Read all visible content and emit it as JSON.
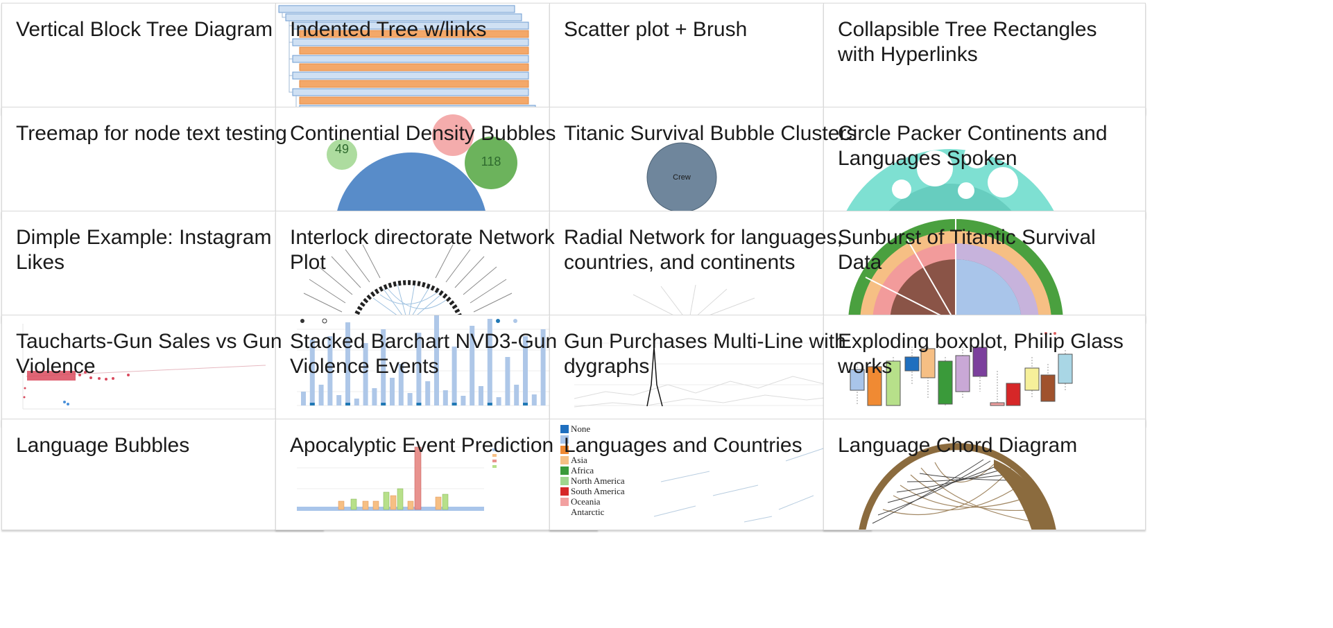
{
  "gallery": {
    "cards": [
      {
        "title": "Vertical Block Tree Diagram"
      },
      {
        "title": "Indented Tree w/links"
      },
      {
        "title": "Scatter plot + Brush"
      },
      {
        "title": "Collapsible Tree Rectangles with Hyperlinks"
      },
      {
        "title": "Treemap for node text testing"
      },
      {
        "title": "Continential Density Bubbles"
      },
      {
        "title": "Titanic Survival Bubble Clusters"
      },
      {
        "title": "Circle Packer Continents and Languages Spoken"
      },
      {
        "title": "Dimple Example: Instagram Likes"
      },
      {
        "title": "Interlock directorate Network Plot"
      },
      {
        "title": "Radial Network for languages, countries, and continents"
      },
      {
        "title": "Sunburst of Titantic Survival Data"
      },
      {
        "title": "Taucharts-Gun Sales vs Gun Violence"
      },
      {
        "title": "Stacked Barchart NVD3-Gun Violence Events"
      },
      {
        "title": "Gun Purchases Multi-Line with dygraphs"
      },
      {
        "title": "Exploding boxplot, Philip Glass works"
      },
      {
        "title": "Language Bubbles"
      },
      {
        "title": "Apocalyptic Event Prediction"
      },
      {
        "title": "Languages and Countries"
      },
      {
        "title": "Language Chord Diagram"
      }
    ]
  },
  "thumbnails": {
    "density_bubbles": {
      "bubble_a": "49",
      "bubble_b": "118"
    },
    "titanic_bubbles": {
      "cluster_label": "Crew"
    },
    "languages_countries_legend": [
      "None",
      "Asia",
      "Africa",
      "North America",
      "South America",
      "Oceania",
      "Antarctic"
    ]
  },
  "colors": {
    "tree_fill": "#cfe0f3",
    "tree_highlight": "#f4a869",
    "density_blue": "#4f86c6",
    "density_green": "#5cab4a",
    "circle_pack_teal": "#7ee0d2",
    "sunburst_green": "#4aa03f",
    "scatter_red": "#d94a5d"
  }
}
